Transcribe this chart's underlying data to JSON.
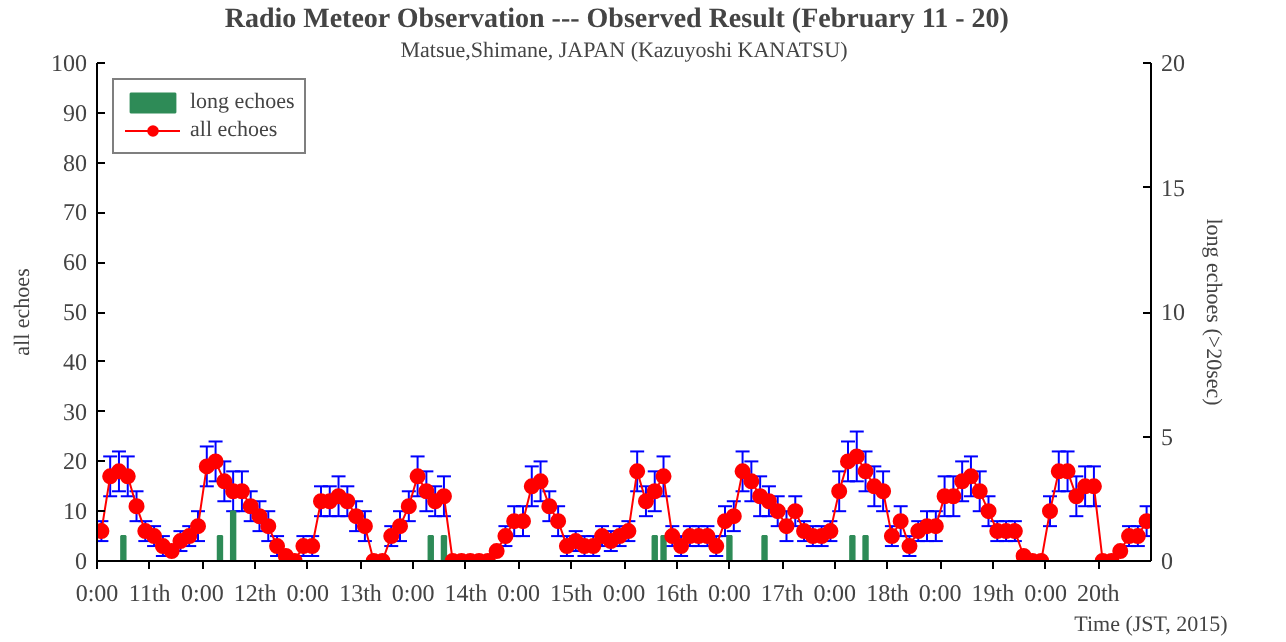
{
  "chart_data": {
    "type": "line",
    "title": "Radio Meteor Observation  --- Observed Result (February  11 - 20)",
    "subtitle": "Matsue,Shimane, JAPAN (Kazuyoshi KANATSU)",
    "xlabel": "Time (JST, 2015)",
    "ylabel": "all echoes",
    "y2label": "long echoes (>20sec)",
    "xlim": [
      "2015-02-11T00:00",
      "2015-02-21T00:00"
    ],
    "ylim": [
      0,
      100
    ],
    "y2lim": [
      0,
      20
    ],
    "xticks": [
      {
        "value": "2015-02-11T00:00",
        "label": "0:00"
      },
      {
        "value": "2015-02-11T12:00",
        "label": "11th"
      },
      {
        "value": "2015-02-12T00:00",
        "label": "0:00"
      },
      {
        "value": "2015-02-12T12:00",
        "label": "12th"
      },
      {
        "value": "2015-02-13T00:00",
        "label": "0:00"
      },
      {
        "value": "2015-02-13T12:00",
        "label": "13th"
      },
      {
        "value": "2015-02-14T00:00",
        "label": "0:00"
      },
      {
        "value": "2015-02-14T12:00",
        "label": "14th"
      },
      {
        "value": "2015-02-15T00:00",
        "label": "0:00"
      },
      {
        "value": "2015-02-15T12:00",
        "label": "15th"
      },
      {
        "value": "2015-02-16T00:00",
        "label": "0:00"
      },
      {
        "value": "2015-02-16T12:00",
        "label": "16th"
      },
      {
        "value": "2015-02-17T00:00",
        "label": "0:00"
      },
      {
        "value": "2015-02-17T12:00",
        "label": "17th"
      },
      {
        "value": "2015-02-18T00:00",
        "label": "0:00"
      },
      {
        "value": "2015-02-18T12:00",
        "label": "18th"
      },
      {
        "value": "2015-02-19T00:00",
        "label": "0:00"
      },
      {
        "value": "2015-02-19T12:00",
        "label": "19th"
      },
      {
        "value": "2015-02-20T00:00",
        "label": "0:00"
      },
      {
        "value": "2015-02-20T12:00",
        "label": "20th"
      }
    ],
    "yticks": [
      0,
      10,
      20,
      30,
      40,
      50,
      60,
      70,
      80,
      90,
      100
    ],
    "y2ticks": [
      0,
      5,
      10,
      15,
      20
    ],
    "legend": "top left",
    "grid": false,
    "marker": "circle",
    "line_style": "solid",
    "series": [
      {
        "name": "long echoes",
        "type": "bar",
        "axis": "y2",
        "color": "#2e8b57",
        "x": [
          "2015-02-11T06:00",
          "2015-02-12T04:00",
          "2015-02-12T07:00",
          "2015-02-14T04:00",
          "2015-02-14T07:00",
          "2015-02-16T07:00",
          "2015-02-16T09:00",
          "2015-02-17T00:00",
          "2015-02-17T08:00",
          "2015-02-18T04:00",
          "2015-02-18T07:00"
        ],
        "values": [
          1,
          1,
          2,
          1,
          1,
          1,
          1,
          1,
          1,
          1,
          1
        ]
      },
      {
        "name": "all echoes",
        "color": "#ff0000",
        "x": [
          "2015-02-11T01:00",
          "2015-02-11T03:00",
          "2015-02-11T05:00",
          "2015-02-11T07:00",
          "2015-02-11T09:00",
          "2015-02-11T11:00",
          "2015-02-11T13:00",
          "2015-02-11T15:00",
          "2015-02-11T17:00",
          "2015-02-11T19:00",
          "2015-02-11T21:00",
          "2015-02-11T23:00",
          "2015-02-12T01:00",
          "2015-02-12T03:00",
          "2015-02-12T05:00",
          "2015-02-12T07:00",
          "2015-02-12T09:00",
          "2015-02-12T11:00",
          "2015-02-12T13:00",
          "2015-02-12T15:00",
          "2015-02-12T17:00",
          "2015-02-12T19:00",
          "2015-02-12T21:00",
          "2015-02-12T23:00",
          "2015-02-13T01:00",
          "2015-02-13T03:00",
          "2015-02-13T05:00",
          "2015-02-13T07:00",
          "2015-02-13T09:00",
          "2015-02-13T11:00",
          "2015-02-13T13:00",
          "2015-02-13T15:00",
          "2015-02-13T17:00",
          "2015-02-13T19:00",
          "2015-02-13T21:00",
          "2015-02-13T23:00",
          "2015-02-14T01:00",
          "2015-02-14T03:00",
          "2015-02-14T05:00",
          "2015-02-14T07:00",
          "2015-02-14T09:00",
          "2015-02-14T11:00",
          "2015-02-14T13:00",
          "2015-02-14T15:00",
          "2015-02-14T17:00",
          "2015-02-14T19:00",
          "2015-02-14T21:00",
          "2015-02-14T23:00",
          "2015-02-15T01:00",
          "2015-02-15T03:00",
          "2015-02-15T05:00",
          "2015-02-15T07:00",
          "2015-02-15T09:00",
          "2015-02-15T11:00",
          "2015-02-15T13:00",
          "2015-02-15T15:00",
          "2015-02-15T17:00",
          "2015-02-15T19:00",
          "2015-02-15T21:00",
          "2015-02-15T23:00",
          "2015-02-16T01:00",
          "2015-02-16T03:00",
          "2015-02-16T05:00",
          "2015-02-16T07:00",
          "2015-02-16T09:00",
          "2015-02-16T11:00",
          "2015-02-16T13:00",
          "2015-02-16T15:00",
          "2015-02-16T17:00",
          "2015-02-16T19:00",
          "2015-02-16T21:00",
          "2015-02-16T23:00",
          "2015-02-17T01:00",
          "2015-02-17T03:00",
          "2015-02-17T05:00",
          "2015-02-17T07:00",
          "2015-02-17T09:00",
          "2015-02-17T11:00",
          "2015-02-17T13:00",
          "2015-02-17T15:00",
          "2015-02-17T17:00",
          "2015-02-17T19:00",
          "2015-02-17T21:00",
          "2015-02-17T23:00",
          "2015-02-18T01:00",
          "2015-02-18T03:00",
          "2015-02-18T05:00",
          "2015-02-18T07:00",
          "2015-02-18T09:00",
          "2015-02-18T11:00",
          "2015-02-18T13:00",
          "2015-02-18T15:00",
          "2015-02-18T17:00",
          "2015-02-18T19:00",
          "2015-02-18T21:00",
          "2015-02-18T23:00",
          "2015-02-19T01:00",
          "2015-02-19T03:00",
          "2015-02-19T05:00",
          "2015-02-19T07:00",
          "2015-02-19T09:00",
          "2015-02-19T11:00",
          "2015-02-19T13:00",
          "2015-02-19T15:00",
          "2015-02-19T17:00",
          "2015-02-19T19:00",
          "2015-02-19T21:00",
          "2015-02-19T23:00",
          "2015-02-20T01:00",
          "2015-02-20T03:00",
          "2015-02-20T05:00",
          "2015-02-20T07:00",
          "2015-02-20T09:00",
          "2015-02-20T11:00",
          "2015-02-20T13:00",
          "2015-02-20T15:00",
          "2015-02-20T17:00",
          "2015-02-20T19:00",
          "2015-02-20T21:00",
          "2015-02-20T23:00"
        ],
        "values": [
          6,
          17,
          18,
          17,
          11,
          6,
          5,
          3,
          2,
          4,
          5,
          7,
          19,
          20,
          16,
          14,
          14,
          11,
          9,
          7,
          3,
          1,
          0,
          3,
          3,
          12,
          12,
          13,
          12,
          9,
          7,
          0,
          0,
          5,
          7,
          11,
          17,
          14,
          12,
          13,
          0,
          0,
          0,
          0,
          0,
          2,
          5,
          8,
          8,
          15,
          16,
          11,
          8,
          3,
          4,
          3,
          3,
          5,
          4,
          5,
          6,
          18,
          12,
          14,
          17,
          5,
          3,
          5,
          5,
          5,
          3,
          8,
          9,
          18,
          16,
          13,
          12,
          10,
          7,
          10,
          6,
          5,
          5,
          6,
          14,
          20,
          21,
          18,
          15,
          14,
          5,
          8,
          3,
          6,
          7,
          7,
          13,
          13,
          16,
          17,
          14,
          10,
          6,
          6,
          6,
          1,
          0,
          0,
          10,
          18,
          18,
          13,
          15,
          15,
          0,
          0,
          2,
          5,
          5,
          8
        ],
        "errors": [
          2,
          4,
          4,
          4,
          3,
          2,
          2,
          2,
          null,
          2,
          2,
          3,
          4,
          4,
          4,
          4,
          4,
          3,
          3,
          3,
          2,
          null,
          null,
          2,
          2,
          3,
          3,
          4,
          3,
          3,
          3,
          null,
          null,
          2,
          3,
          3,
          4,
          4,
          3,
          4,
          null,
          null,
          null,
          null,
          null,
          null,
          2,
          3,
          3,
          4,
          4,
          3,
          3,
          2,
          2,
          2,
          2,
          2,
          2,
          2,
          2,
          4,
          3,
          4,
          4,
          2,
          2,
          2,
          2,
          2,
          2,
          3,
          3,
          4,
          4,
          4,
          3,
          3,
          3,
          3,
          2,
          2,
          2,
          2,
          4,
          4,
          5,
          4,
          4,
          4,
          2,
          3,
          2,
          2,
          3,
          3,
          4,
          4,
          4,
          4,
          4,
          3,
          2,
          2,
          2,
          null,
          null,
          null,
          3,
          4,
          4,
          4,
          4,
          4,
          null,
          null,
          null,
          2,
          2,
          3
        ]
      }
    ]
  }
}
